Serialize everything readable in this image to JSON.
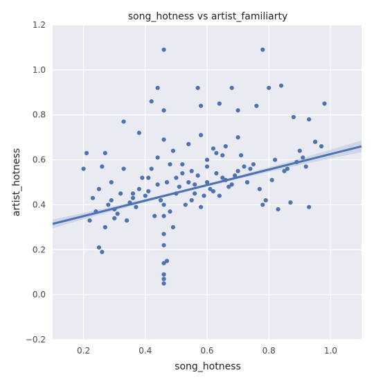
{
  "chart_data": {
    "type": "scatter",
    "title": "song_hotness vs artist_familiarty",
    "xlabel": "song_hotness",
    "ylabel": "artist_hotness",
    "xlim": [
      0.1,
      1.1
    ],
    "ylim": [
      -0.2,
      1.2
    ],
    "xticks": [
      0.2,
      0.4,
      0.6,
      0.8,
      1.0
    ],
    "xtick_labels": [
      "0.2",
      "0.4",
      "0.6",
      "0.8",
      "1.0"
    ],
    "yticks": [
      -0.2,
      0.0,
      0.2,
      0.4,
      0.6,
      0.8,
      1.0,
      1.2
    ],
    "ytick_labels": [
      "−0.2",
      "0.0",
      "0.2",
      "0.4",
      "0.6",
      "0.8",
      "1.0",
      "1.2"
    ],
    "grid": true,
    "background": "#eaeaf2",
    "point_color": "#4c72b0",
    "regression": {
      "x": [
        0.1,
        1.1
      ],
      "y": [
        0.315,
        0.66
      ],
      "color": "#4c72b0",
      "band_color": "#c3cde4"
    },
    "points": {
      "x": [
        0.46,
        0.78,
        0.44,
        0.68,
        0.8,
        0.84,
        0.98,
        0.42,
        0.57,
        0.33,
        0.46,
        0.38,
        0.46,
        0.58,
        0.64,
        0.7,
        0.76,
        0.88,
        0.93,
        0.95,
        0.97,
        0.9,
        0.92,
        0.21,
        0.27,
        0.2,
        0.26,
        0.29,
        0.33,
        0.25,
        0.26,
        0.46,
        0.46,
        0.46,
        0.46,
        0.46,
        0.46,
        0.46,
        0.47,
        0.49,
        0.46,
        0.93,
        0.87,
        0.83,
        0.79,
        0.78,
        0.6,
        0.62,
        0.65,
        0.52,
        0.55,
        0.5,
        0.44,
        0.41,
        0.36,
        0.56,
        0.65,
        0.7,
        0.72,
        0.6,
        0.45,
        0.4,
        0.35,
        0.3,
        0.51,
        0.54,
        0.57,
        0.61,
        0.66,
        0.68,
        0.74,
        0.75,
        0.82,
        0.85,
        0.71,
        0.63,
        0.67,
        0.59,
        0.53,
        0.48,
        0.43,
        0.37,
        0.34,
        0.31,
        0.28,
        0.24,
        0.22,
        0.23,
        0.25,
        0.27,
        0.29,
        0.32,
        0.39,
        0.42,
        0.47,
        0.5,
        0.55,
        0.58,
        0.62,
        0.64,
        0.69,
        0.73,
        0.77,
        0.81,
        0.86,
        0.89,
        0.91,
        0.44,
        0.48,
        0.52,
        0.56,
        0.6,
        0.63,
        0.66,
        0.7,
        0.58,
        0.54,
        0.49,
        0.41,
        0.38,
        0.36,
        0.3
      ],
      "y": [
        1.09,
        1.09,
        0.92,
        0.92,
        0.92,
        0.93,
        0.85,
        0.86,
        0.92,
        0.77,
        0.82,
        0.72,
        0.69,
        0.84,
        0.85,
        0.82,
        0.84,
        0.79,
        0.78,
        0.68,
        0.66,
        0.64,
        0.57,
        0.63,
        0.63,
        0.56,
        0.57,
        0.5,
        0.56,
        0.21,
        0.19,
        0.27,
        0.22,
        0.14,
        0.09,
        0.07,
        0.05,
        0.35,
        0.15,
        0.3,
        0.4,
        0.39,
        0.41,
        0.38,
        0.42,
        0.4,
        0.6,
        0.65,
        0.62,
        0.58,
        0.55,
        0.52,
        0.49,
        0.46,
        0.43,
        0.45,
        0.52,
        0.55,
        0.57,
        0.5,
        0.42,
        0.44,
        0.41,
        0.38,
        0.48,
        0.5,
        0.53,
        0.47,
        0.51,
        0.49,
        0.56,
        0.58,
        0.6,
        0.55,
        0.62,
        0.54,
        0.48,
        0.44,
        0.4,
        0.37,
        0.35,
        0.39,
        0.33,
        0.36,
        0.4,
        0.37,
        0.33,
        0.43,
        0.47,
        0.3,
        0.42,
        0.45,
        0.52,
        0.56,
        0.5,
        0.45,
        0.42,
        0.39,
        0.46,
        0.44,
        0.53,
        0.5,
        0.47,
        0.51,
        0.56,
        0.59,
        0.61,
        0.61,
        0.58,
        0.54,
        0.49,
        0.57,
        0.63,
        0.66,
        0.7,
        0.71,
        0.67,
        0.64,
        0.52,
        0.47,
        0.45,
        0.34
      ]
    }
  }
}
